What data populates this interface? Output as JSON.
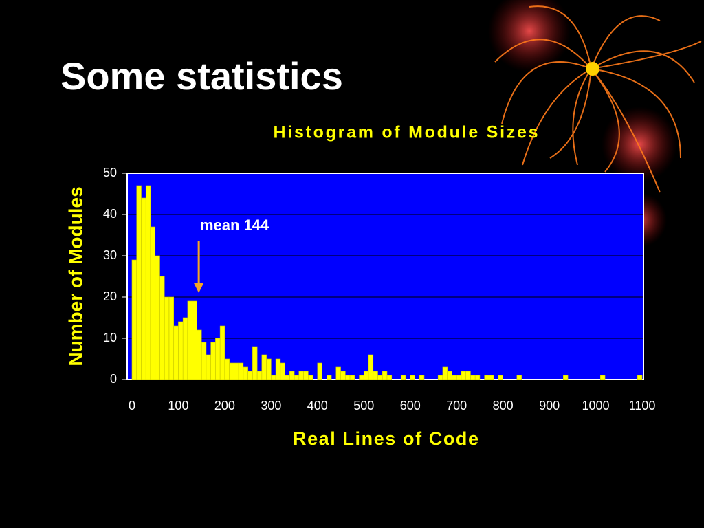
{
  "slide_title": "Some statistics",
  "chart_data": {
    "type": "histogram",
    "title": "Histogram of Module Sizes",
    "x_label": "Real Lines of Code",
    "y_label": "Number of Modules",
    "bins": [
      0,
      10,
      20,
      30,
      40,
      50,
      60,
      70,
      80,
      90,
      100,
      110,
      120,
      130,
      140,
      150,
      160,
      170,
      180,
      190,
      200,
      210,
      220,
      230,
      240,
      250,
      260,
      270,
      280,
      290,
      300,
      310,
      320,
      330,
      340,
      350,
      360,
      370,
      380,
      390,
      400,
      410,
      420,
      430,
      440,
      450,
      460,
      470,
      480,
      490,
      500,
      510,
      520,
      530,
      540,
      550,
      560,
      570,
      580,
      590,
      600,
      610,
      620,
      630,
      640,
      650,
      660,
      670,
      680,
      690,
      700,
      710,
      720,
      730,
      740,
      750,
      760,
      770,
      780,
      790,
      800,
      810,
      820,
      830,
      840,
      850,
      860,
      870,
      880,
      890,
      900,
      910,
      920,
      930,
      940,
      950,
      960,
      970,
      980,
      990,
      1000,
      1010,
      1020,
      1030,
      1040,
      1050,
      1060,
      1070,
      1080,
      1090,
      1100
    ],
    "counts": [
      29,
      47,
      44,
      47,
      37,
      30,
      25,
      20,
      20,
      13,
      14,
      15,
      19,
      19,
      12,
      9,
      6,
      9,
      10,
      13,
      5,
      4,
      4,
      4,
      3,
      2,
      8,
      2,
      6,
      5,
      1,
      5,
      4,
      1,
      2,
      1,
      2,
      2,
      1,
      0,
      4,
      0,
      1,
      0,
      3,
      2,
      1,
      1,
      0,
      1,
      2,
      6,
      2,
      1,
      2,
      1,
      0,
      0,
      1,
      0,
      1,
      0,
      1,
      0,
      0,
      0,
      1,
      3,
      2,
      1,
      1,
      2,
      2,
      1,
      1,
      0,
      1,
      1,
      0,
      1,
      0,
      0,
      0,
      1,
      0,
      0,
      0,
      0,
      0,
      0,
      0,
      0,
      0,
      1,
      0,
      0,
      0,
      0,
      0,
      0,
      0,
      1,
      0,
      0,
      0,
      0,
      0,
      0,
      0,
      1
    ],
    "color": "#ffff00",
    "plot_background": "#0000ff",
    "grid": true,
    "xlim": [
      0,
      1100
    ],
    "xticks": [
      0,
      100,
      200,
      300,
      400,
      500,
      600,
      700,
      800,
      900,
      1000,
      1100
    ],
    "ylim": [
      0,
      50
    ],
    "yticks": [
      0,
      10,
      20,
      30,
      40,
      50
    ],
    "annotation": {
      "text": "mean 144",
      "x": 144
    }
  }
}
